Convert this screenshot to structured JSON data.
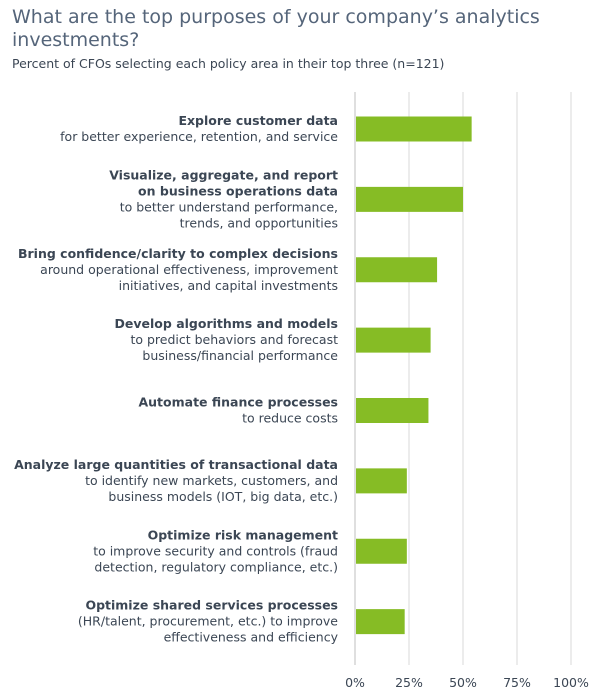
{
  "chart_data": {
    "type": "bar",
    "orientation": "horizontal",
    "title": "What are the top purposes of your company’s analytics investments?",
    "subtitle": "Percent of CFOs selecting each policy area in their top three (n=121)",
    "xlim": [
      0,
      100
    ],
    "ticks": [
      "0%",
      "25%",
      "50%",
      "75%",
      "100%"
    ],
    "tick_values": [
      0,
      25,
      50,
      75,
      100
    ],
    "bar_color": "#86bc25",
    "grid_color": "#d9d9d9",
    "categories": [
      {
        "bold": [
          "Explore customer data"
        ],
        "normal": [
          "for better experience, retention, and service"
        ],
        "value": 54
      },
      {
        "bold": [
          "Visualize, aggregate, and report",
          "on business operations data"
        ],
        "normal": [
          "to better understand performance,",
          "trends, and opportunities"
        ],
        "value": 50
      },
      {
        "bold": [
          "Bring confidence/clarity to complex decisions"
        ],
        "normal": [
          "around operational effectiveness, improvement",
          "initiatives, and capital investments"
        ],
        "value": 38
      },
      {
        "bold": [
          "Develop algorithms and models"
        ],
        "normal": [
          "to predict behaviors and forecast",
          "business/financial performance"
        ],
        "value": 35
      },
      {
        "bold": [
          "Automate finance processes"
        ],
        "normal": [
          "to reduce costs"
        ],
        "value": 34
      },
      {
        "bold": [
          "Analyze large quantities of transactional data"
        ],
        "normal": [
          "to identify new markets, customers, and",
          "business models (IOT, big data, etc.)"
        ],
        "value": 24
      },
      {
        "bold": [
          "Optimize risk management"
        ],
        "normal": [
          "to improve security and controls (fraud",
          "detection, regulatory compliance, etc.)"
        ],
        "value": 24
      },
      {
        "bold": [
          "Optimize shared services processes"
        ],
        "normal": [
          "(HR/talent, procurement, etc.) to improve",
          "effectiveness and efficiency"
        ],
        "value": 23
      }
    ]
  }
}
